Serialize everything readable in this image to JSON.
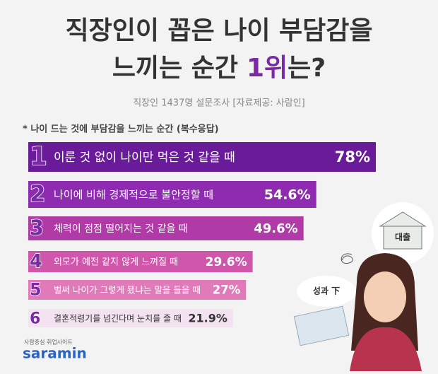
{
  "chart_data": {
    "type": "bar",
    "orientation": "horizontal",
    "title_line1": "직장인이 꼽은 나이 부담감을",
    "title_line2_pre": "느끼는 순간",
    "title_highlight": "1위",
    "title_line2_post": "는?",
    "subtitle": "직장인 1437명 설문조사 [자료제공: 사람인]",
    "note": "* 나이 드는 것에 부담감을 느끼는 순간 (복수응답)",
    "ranks": [
      "1",
      "2",
      "3",
      "4",
      "5",
      "6"
    ],
    "categories": [
      "이룬 것 없이 나이만 먹은 것 같을 때",
      "나이에 비해 경제적으로 불안정할 때",
      "체력이 점점 떨어지는 것 같을 때",
      "외모가 예전 같지 않게 느껴질 때",
      "벌써 나이가 그렇게 됐냐는 말을 들을 때",
      "결혼적령기를 넘긴다며 눈치를 줄 때"
    ],
    "values": [
      78,
      54.6,
      49.6,
      29.6,
      27,
      21.9
    ],
    "value_labels": [
      "78%",
      "54.6%",
      "49.6%",
      "29.6%",
      "27%",
      "21.9%"
    ],
    "colors": [
      "#6a1b9a",
      "#8e2bb0",
      "#b03aa6",
      "#cf56ab",
      "#e17ab9",
      "#f3e2ef"
    ],
    "illustration_labels": [
      "대출",
      "성과 下"
    ],
    "brand_tagline": "사람중심 취업사이트",
    "brand": "saramin"
  }
}
